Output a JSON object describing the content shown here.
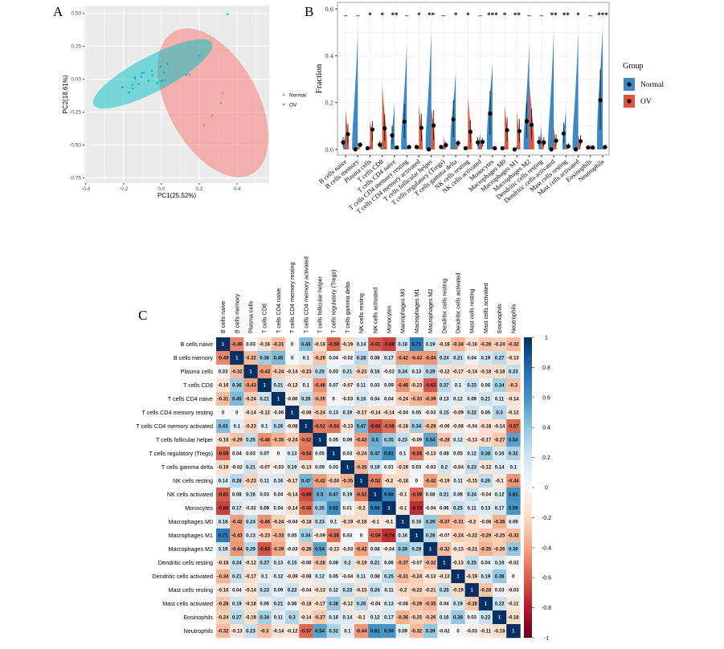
{
  "chart_data": [
    {
      "panel": "A",
      "type": "scatter",
      "xlabel": "PC1(25.52%)",
      "ylabel": "PC2(18.61%)",
      "xlim": [
        -0.45,
        0.57
      ],
      "ylim": [
        -0.79,
        0.56
      ],
      "xticks": [
        "-0.4",
        "-0.2",
        "0.0",
        "0.2",
        "0.4"
      ],
      "xtick_values": [
        -0.4,
        -0.2,
        0.0,
        0.2,
        0.4
      ],
      "yticks": [
        "0.50",
        "0.25",
        "0.00",
        "-0.25",
        "-0.50",
        "-0.75"
      ],
      "ytick_values": [
        0.5,
        0.25,
        0.0,
        -0.25,
        -0.5,
        -0.75
      ],
      "grid": true,
      "legend_position": "right",
      "series": [
        {
          "name": "Normal",
          "color": "#F8766D",
          "points": [
            [
              0.149,
              0.035
            ],
            [
              0.324,
              -0.104
            ],
            [
              0.314,
              -0.18
            ],
            [
              0.27,
              -0.274
            ],
            [
              0.225,
              -0.35
            ]
          ]
        },
        {
          "name": "OV",
          "color": "#00BFC4",
          "points": [
            [
              0.35,
              0.494
            ],
            [
              0.203,
              0.177
            ],
            [
              0.133,
              0.035
            ],
            [
              0.033,
              0.116
            ],
            [
              -0.004,
              0.098
            ],
            [
              0.014,
              0.051
            ],
            [
              0.021,
              -0.006
            ],
            [
              0.007,
              -0.01
            ],
            [
              -0.004,
              -0.014
            ],
            [
              -0.023,
              -0.028
            ],
            [
              -0.051,
              0.063
            ],
            [
              -0.048,
              0.03
            ],
            [
              -0.068,
              -0.01
            ],
            [
              -0.092,
              0.051
            ],
            [
              -0.103,
              0.047
            ],
            [
              -0.106,
              0.02
            ],
            [
              -0.12,
              -0.035
            ],
            [
              -0.142,
              0.014
            ],
            [
              -0.139,
              0.004
            ],
            [
              -0.153,
              -0.043
            ],
            [
              -0.152,
              -0.069
            ],
            [
              -0.17,
              -0.1
            ],
            [
              -0.207,
              -0.061
            ]
          ]
        }
      ]
    },
    {
      "panel": "B",
      "type": "violin",
      "ylabel": "Fraction",
      "ylim": [
        0,
        0.6
      ],
      "yticks": [
        "0.0",
        "0.2",
        "0.4",
        "0.6"
      ],
      "ytick_values": [
        0,
        0.2,
        0.4,
        0.6
      ],
      "legend_title": "Group",
      "legend_position": "right",
      "categories": [
        "B cells naive",
        "B cells memory",
        "Plasma cells",
        "T cells CD8",
        "T cells CD4 naive",
        "T cells CD4 memory resting",
        "T cells CD4 memory activated",
        "T cells follicular helper",
        "T cells regulatory (Tregs)",
        "T cells gamma delta",
        "NK cells resting",
        "NK cells activated",
        "Monocytes",
        "Macrophages M0",
        "Macrophages M1",
        "Macrophages M2",
        "Dendritic cells resting",
        "Dendritic cells activated",
        "Mast cells resting",
        "Mast cells activated",
        "Eosinophils",
        "Neutrophils"
      ],
      "significance": [
        "–",
        "–",
        "*",
        "*",
        "**",
        "–",
        "*",
        "**",
        "–",
        "*",
        "*",
        "–",
        "***",
        "*",
        "**",
        "–",
        "–",
        "**",
        "**",
        "*",
        "–",
        "***"
      ],
      "series": [
        {
          "name": "Normal",
          "color": "#3A88C4",
          "median": [
            0.03,
            0.0,
            0.005,
            0.02,
            0.06,
            0.118,
            0.01,
            0.0,
            0.01,
            0.128,
            0.005,
            0.03,
            0.153,
            0.005,
            0.0,
            0.12,
            0.032,
            0.0,
            0.068,
            0.0,
            0.008,
            0.21
          ],
          "max": [
            0.07,
            0.5,
            0.02,
            0.04,
            0.2,
            0.45,
            0.02,
            0.5,
            0.02,
            0.33,
            0.02,
            0.07,
            0.37,
            0.02,
            0.02,
            0.45,
            0.1,
            0.5,
            0.17,
            0.5,
            0.02,
            0.52
          ]
        },
        {
          "name": "OV",
          "color": "#E0533C",
          "median": [
            0.065,
            0.02,
            0.085,
            0.09,
            0.008,
            0.01,
            0.092,
            0.102,
            0.018,
            0.027,
            0.075,
            0.032,
            0.005,
            0.082,
            0.078,
            0.105,
            0.03,
            0.037,
            0.013,
            0.035,
            0.008,
            0.01
          ],
          "max": [
            0.17,
            0.03,
            0.12,
            0.28,
            0.02,
            0.02,
            0.19,
            0.18,
            0.06,
            0.04,
            0.23,
            0.05,
            0.02,
            0.19,
            0.16,
            0.3,
            0.06,
            0.1,
            0.03,
            0.06,
            0.02,
            0.02
          ]
        }
      ]
    },
    {
      "panel": "C",
      "type": "heatmap",
      "labels": [
        "B cells naive",
        "B cells memory",
        "Plasma cells",
        "T cells CD8",
        "T cells CD4 naive",
        "T cells CD4 memory resting",
        "T cells CD4 memory activated",
        "T cells follicular helper",
        "T cells regulatory (Tregs)",
        "T cells gamma delta",
        "NK cells resting",
        "NK cells activated",
        "Monocytes",
        "Macrophages M0",
        "Macrophages M1",
        "Macrophages M2",
        "Dendritic cells resting",
        "Dendritic cells activated",
        "Mast cells resting",
        "Mast cells activated",
        "Eosinophils",
        "Neutrophils"
      ],
      "colorbar_ticks": [
        "1",
        "0.8",
        "0.6",
        "0.4",
        "0.2",
        "0",
        "-0.2",
        "-0.4",
        "-0.6",
        "-0.8",
        "-1"
      ],
      "colorbar_values": [
        1,
        0.8,
        0.6,
        0.4,
        0.2,
        0,
        -0.2,
        -0.4,
        -0.6,
        -0.8,
        -1
      ],
      "range": [
        -1,
        1
      ],
      "matrix": [
        [
          1,
          -0.49,
          0.03,
          -0.16,
          -0.31,
          0,
          0.43,
          -0.18,
          -0.59,
          -0.19,
          0.14,
          -0.61,
          -0.68,
          0.18,
          0.71,
          0.19,
          -0.18,
          -0.34,
          -0.16,
          -0.28,
          -0.24,
          -0.32
        ],
        [
          -0.49,
          1,
          -0.32,
          0.36,
          0.45,
          0,
          0.1,
          -0.29,
          0.04,
          -0.02,
          0.28,
          0.08,
          0.17,
          -0.42,
          -0.43,
          -0.44,
          0.24,
          0.21,
          0.04,
          0.19,
          0.27,
          -0.13
        ],
        [
          0.03,
          -0.32,
          1,
          -0.43,
          -0.24,
          -0.14,
          -0.23,
          0.25,
          0.03,
          0.21,
          -0.23,
          0.16,
          -0.02,
          0.24,
          0.13,
          0.29,
          -0.12,
          -0.17,
          -0.14,
          -0.18,
          -0.18,
          0.23
        ],
        [
          -0.16,
          0.36,
          -0.43,
          1,
          0.21,
          -0.12,
          0.1,
          -0.46,
          0.07,
          -0.07,
          0.11,
          0.03,
          0.09,
          -0.46,
          -0.23,
          -0.63,
          0.27,
          0.1,
          0.23,
          0.06,
          0.34,
          -0.3
        ],
        [
          -0.31,
          0.45,
          -0.24,
          0.21,
          1,
          -0.06,
          0.26,
          -0.35,
          0,
          -0.03,
          0.16,
          0.04,
          0.04,
          -0.24,
          -0.33,
          -0.39,
          0.13,
          0.12,
          0.09,
          0.21,
          0.11,
          -0.14
        ],
        [
          0,
          0,
          -0.14,
          -0.12,
          -0.06,
          1,
          -0.08,
          -0.24,
          0.13,
          0.19,
          -0.17,
          -0.14,
          -0.14,
          -0.04,
          0.05,
          -0.03,
          0.15,
          -0.09,
          0.22,
          0.06,
          0.3,
          -0.12
        ],
        [
          0.43,
          0.1,
          -0.23,
          0.1,
          0.26,
          -0.08,
          1,
          -0.52,
          -0.54,
          -0.13,
          0.47,
          -0.66,
          -0.56,
          -0.18,
          0.34,
          -0.28,
          -0.06,
          -0.08,
          -0.04,
          -0.18,
          -0.14,
          -0.57
        ],
        [
          -0.18,
          -0.29,
          0.25,
          -0.46,
          -0.35,
          -0.24,
          -0.52,
          1,
          0.05,
          0.09,
          -0.42,
          0.5,
          0.35,
          0.23,
          -0.09,
          0.54,
          -0.28,
          0.12,
          -0.13,
          -0.17,
          -0.27,
          0.54
        ],
        [
          -0.59,
          0.04,
          0.03,
          0.07,
          0,
          0.13,
          -0.54,
          0.05,
          1,
          0.03,
          -0.24,
          0.47,
          0.62,
          0.1,
          -0.55,
          -0.13,
          0.08,
          0.05,
          0.12,
          0.38,
          0.16,
          0.32
        ],
        [
          -0.19,
          -0.02,
          0.21,
          -0.07,
          -0.03,
          0.19,
          -0.13,
          0.09,
          0.03,
          1,
          -0.35,
          0.19,
          0.01,
          -0.19,
          0.03,
          -0.03,
          0.2,
          -0.04,
          0.23,
          -0.12,
          0.14,
          0.1
        ],
        [
          0.14,
          0.28,
          -0.23,
          0.11,
          0.16,
          -0.17,
          0.47,
          -0.42,
          -0.24,
          -0.35,
          1,
          -0.52,
          -0.2,
          -0.18,
          0,
          -0.42,
          -0.19,
          0.11,
          -0.15,
          0.26,
          -0.1,
          -0.44
        ],
        [
          -0.61,
          0.08,
          0.16,
          0.03,
          0.04,
          -0.14,
          -0.66,
          0.5,
          0.47,
          0.19,
          -0.52,
          1,
          0.68,
          -0.1,
          -0.59,
          0.08,
          0.21,
          0.08,
          0.24,
          -0.04,
          0.12,
          0.61
        ],
        [
          -0.68,
          0.17,
          -0.02,
          0.09,
          0.04,
          -0.14,
          -0.56,
          0.35,
          0.62,
          0.01,
          -0.2,
          0.68,
          1,
          -0.1,
          -0.74,
          -0.04,
          0.06,
          0.25,
          0.11,
          0.13,
          0.17,
          0.59
        ],
        [
          0.18,
          -0.42,
          0.24,
          -0.46,
          -0.24,
          -0.04,
          -0.18,
          0.23,
          0.1,
          -0.19,
          -0.18,
          -0.1,
          -0.1,
          1,
          0.16,
          0.39,
          -0.37,
          -0.31,
          -0.2,
          -0.08,
          -0.36,
          0.09
        ],
        [
          0.71,
          -0.43,
          0.13,
          -0.23,
          -0.33,
          0.05,
          0.34,
          -0.09,
          -0.55,
          0.03,
          0,
          -0.59,
          -0.74,
          0.16,
          1,
          0.28,
          -0.07,
          -0.24,
          -0.22,
          -0.29,
          -0.25,
          -0.32
        ],
        [
          0.19,
          -0.44,
          0.29,
          -0.63,
          -0.39,
          -0.03,
          -0.28,
          0.54,
          -0.13,
          -0.03,
          -0.42,
          0.08,
          -0.04,
          0.39,
          0.28,
          1,
          -0.32,
          -0.13,
          -0.21,
          -0.35,
          -0.26,
          0.39
        ],
        [
          -0.18,
          0.24,
          -0.12,
          0.27,
          0.13,
          0.15,
          -0.06,
          -0.28,
          0.08,
          0.2,
          -0.19,
          0.21,
          0.06,
          -0.37,
          -0.07,
          -0.32,
          1,
          -0.13,
          0.25,
          0.04,
          0.16,
          -0.02
        ],
        [
          -0.34,
          0.21,
          -0.17,
          0.1,
          0.12,
          -0.09,
          -0.08,
          0.12,
          0.05,
          -0.04,
          0.11,
          0.08,
          0.25,
          -0.31,
          -0.24,
          -0.13,
          -0.13,
          1,
          -0.19,
          0.19,
          0.38,
          0
        ],
        [
          -0.16,
          0.04,
          -0.14,
          0.23,
          0.09,
          0.22,
          -0.04,
          -0.13,
          0.12,
          0.23,
          -0.15,
          0.24,
          0.11,
          -0.2,
          -0.22,
          -0.21,
          0.25,
          -0.19,
          1,
          -0.28,
          0.03,
          -0.03
        ],
        [
          -0.28,
          0.19,
          -0.18,
          0.06,
          0.21,
          0.06,
          -0.18,
          -0.17,
          0.38,
          -0.12,
          0.26,
          -0.04,
          0.13,
          -0.08,
          -0.29,
          -0.35,
          0.04,
          0.19,
          -0.28,
          1,
          0.22,
          -0.11
        ],
        [
          -0.24,
          0.27,
          -0.18,
          0.34,
          0.11,
          0.3,
          -0.14,
          -0.27,
          0.16,
          0.14,
          -0.1,
          0.12,
          0.17,
          -0.36,
          -0.25,
          -0.26,
          0.16,
          0.38,
          0.03,
          0.22,
          1,
          -0.18
        ],
        [
          -0.32,
          -0.13,
          0.23,
          -0.3,
          -0.14,
          -0.12,
          -0.57,
          0.54,
          0.32,
          0.1,
          -0.44,
          0.61,
          0.59,
          0.09,
          -0.32,
          0.39,
          -0.02,
          0,
          -0.03,
          -0.11,
          -0.18,
          1
        ]
      ]
    }
  ],
  "panel_labels": {
    "a": "A",
    "b": "B",
    "c": "C"
  }
}
